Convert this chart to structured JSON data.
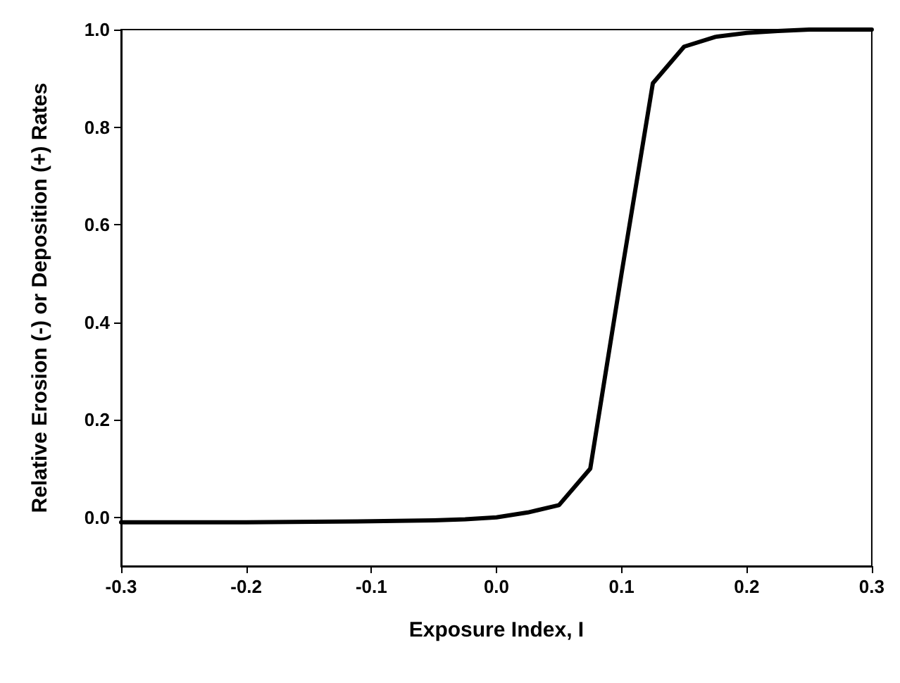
{
  "chart_data": {
    "type": "line",
    "xlabel": "Exposure Index, I",
    "ylabel": "Relative Erosion (-) or Deposition (+) Rates",
    "x": [
      -0.3,
      -0.2,
      -0.1,
      -0.05,
      -0.025,
      0.0,
      0.025,
      0.05,
      0.075,
      0.1,
      0.125,
      0.15,
      0.175,
      0.2,
      0.225,
      0.25,
      0.3
    ],
    "series": [
      {
        "color": "#000000",
        "values": [
          -0.01,
          -0.01,
          -0.008,
          -0.006,
          -0.004,
          0.0,
          0.01,
          0.025,
          0.1,
          0.5,
          0.89,
          0.965,
          0.985,
          0.993,
          0.997,
          1.0,
          1.0
        ]
      }
    ],
    "xlim": [
      -0.3,
      0.3
    ],
    "xticks": [
      -0.3,
      -0.2,
      -0.1,
      {
        "value": 0,
        "label": "0.0"
      },
      0.1,
      0.2,
      0.3
    ],
    "ylim": [
      -0.1,
      1.0
    ],
    "yticks": [
      {
        "value": 0,
        "label": "0.0"
      },
      0.2,
      0.4,
      0.6,
      0.8,
      {
        "value": 1,
        "label": "1.0"
      }
    ],
    "grid": false,
    "marker": "none",
    "line_style": "solid"
  }
}
